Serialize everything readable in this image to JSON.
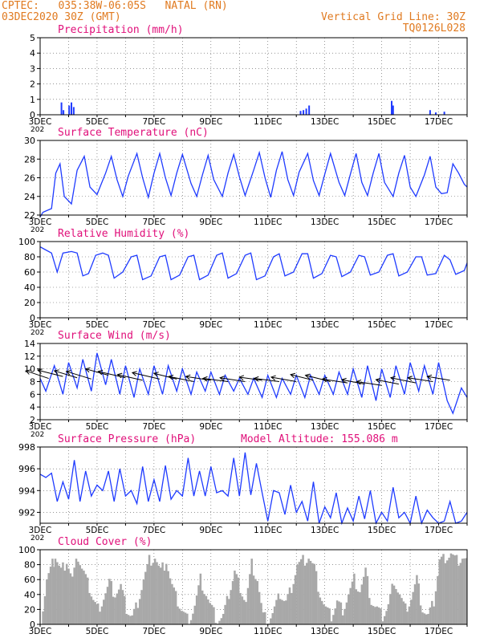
{
  "header": {
    "station_line": "CPTEC:   035:38W-06:05S   NATAL (RN)",
    "run_line": "03DEC2020 30Z (GMT)",
    "grid_note": "Vertical Grid Line: 30Z",
    "model_code": "TQ0126L028"
  },
  "colors": {
    "header": "#e07a20",
    "title": "#e0107a",
    "line": "#1f3bff",
    "cloud": "#a8a8a8",
    "wind_arrow": "#000000"
  },
  "x_axis": {
    "start_day": 3,
    "end_day": 18,
    "tick_labels": [
      "3DEC",
      "5DEC",
      "7DEC",
      "9DEC",
      "11DEC",
      "13DEC",
      "15DEC",
      "17DEC"
    ],
    "tick_days": [
      3,
      5,
      7,
      9,
      11,
      13,
      15,
      17
    ],
    "left_edge_cut_label": "202"
  },
  "chart_data": [
    {
      "type": "bar",
      "title": "Precipitation (mm/h)",
      "ylim": [
        0,
        5
      ],
      "yticks": [
        "0",
        "1",
        "2",
        "3",
        "4",
        "5"
      ],
      "x_days": [
        3.75,
        3.82,
        4.02,
        4.1,
        4.18,
        12.15,
        12.25,
        12.35,
        12.45,
        15.35,
        15.4,
        16.7,
        16.9,
        17.2
      ],
      "values": [
        0.8,
        0.3,
        0.6,
        0.8,
        0.5,
        0.25,
        0.3,
        0.4,
        0.6,
        0.9,
        0.6,
        0.3,
        0.15,
        0.2
      ]
    },
    {
      "type": "line",
      "title": "Surface Temperature (nC)",
      "ylim": [
        22,
        30
      ],
      "yticks": [
        "22",
        "24",
        "26",
        "28",
        "30"
      ],
      "x": [
        3.0,
        3.1,
        3.4,
        3.55,
        3.7,
        3.85,
        4.1,
        4.3,
        4.55,
        4.75,
        5.0,
        5.3,
        5.5,
        5.7,
        5.9,
        6.1,
        6.4,
        6.6,
        6.8,
        7.0,
        7.2,
        7.4,
        7.6,
        7.8,
        8.0,
        8.3,
        8.5,
        8.7,
        8.9,
        9.1,
        9.4,
        9.6,
        9.8,
        10.0,
        10.2,
        10.5,
        10.7,
        10.9,
        11.1,
        11.3,
        11.5,
        11.7,
        11.9,
        12.1,
        12.4,
        12.6,
        12.8,
        13.0,
        13.2,
        13.5,
        13.7,
        13.9,
        14.1,
        14.3,
        14.5,
        14.7,
        14.9,
        15.1,
        15.4,
        15.6,
        15.8,
        16.0,
        16.2,
        16.5,
        16.7,
        16.9,
        17.1,
        17.3,
        17.5,
        17.7,
        17.9,
        18.0
      ],
      "values": [
        21.8,
        22.3,
        22.7,
        26.5,
        27.5,
        24.0,
        23.2,
        26.8,
        28.3,
        25.0,
        24.2,
        26.5,
        28.3,
        25.8,
        24.0,
        26.2,
        28.6,
        26.0,
        23.9,
        26.5,
        28.6,
        26.0,
        24.1,
        26.5,
        28.5,
        25.4,
        24.0,
        26.3,
        28.4,
        25.8,
        24.0,
        26.5,
        28.5,
        26.1,
        24.1,
        26.8,
        28.7,
        26.0,
        23.9,
        26.8,
        28.8,
        25.8,
        24.1,
        26.6,
        28.6,
        25.7,
        24.1,
        26.4,
        28.6,
        25.5,
        24.1,
        26.4,
        28.6,
        25.5,
        24.1,
        26.5,
        28.6,
        25.5,
        24.0,
        26.5,
        28.4,
        25.0,
        24.0,
        26.3,
        28.3,
        25.0,
        24.3,
        24.4,
        27.5,
        26.5,
        25.3,
        25.0
      ]
    },
    {
      "type": "line",
      "title": "Relative Humidity (%)",
      "ylim": [
        0,
        100
      ],
      "yticks": [
        "0",
        "20",
        "40",
        "60",
        "80",
        "100"
      ],
      "x": [
        3.0,
        3.15,
        3.4,
        3.6,
        3.8,
        4.1,
        4.3,
        4.5,
        4.7,
        4.95,
        5.2,
        5.4,
        5.6,
        5.9,
        6.2,
        6.4,
        6.6,
        6.9,
        7.2,
        7.4,
        7.6,
        7.9,
        8.2,
        8.4,
        8.6,
        8.9,
        9.2,
        9.4,
        9.6,
        9.9,
        10.2,
        10.4,
        10.6,
        10.9,
        11.2,
        11.4,
        11.6,
        11.9,
        12.2,
        12.4,
        12.6,
        12.9,
        13.2,
        13.4,
        13.6,
        13.9,
        14.2,
        14.4,
        14.6,
        14.9,
        15.2,
        15.4,
        15.6,
        15.9,
        16.2,
        16.4,
        16.6,
        16.9,
        17.2,
        17.4,
        17.6,
        17.9,
        18.0
      ],
      "values": [
        93,
        90,
        85,
        60,
        85,
        87,
        85,
        55,
        58,
        82,
        85,
        82,
        52,
        60,
        80,
        82,
        50,
        55,
        80,
        82,
        50,
        56,
        80,
        82,
        50,
        56,
        82,
        85,
        52,
        58,
        82,
        85,
        50,
        55,
        80,
        84,
        55,
        60,
        84,
        84,
        52,
        58,
        82,
        80,
        54,
        60,
        82,
        80,
        56,
        60,
        82,
        84,
        55,
        60,
        80,
        80,
        56,
        58,
        82,
        76,
        57,
        62,
        72
      ]
    },
    {
      "type": "line",
      "title": "Surface Wind (m/s)",
      "ylim": [
        2,
        14
      ],
      "yticks": [
        "2",
        "4",
        "6",
        "8",
        "10",
        "12",
        "14"
      ],
      "x": [
        3.0,
        3.2,
        3.5,
        3.8,
        4.0,
        4.3,
        4.5,
        4.8,
        5.0,
        5.3,
        5.5,
        5.8,
        6.0,
        6.3,
        6.5,
        6.8,
        7.0,
        7.3,
        7.5,
        7.8,
        8.0,
        8.3,
        8.5,
        8.8,
        9.0,
        9.3,
        9.5,
        9.8,
        10.0,
        10.3,
        10.5,
        10.8,
        11.0,
        11.3,
        11.5,
        11.8,
        12.0,
        12.3,
        12.5,
        12.8,
        13.0,
        13.3,
        13.5,
        13.8,
        14.0,
        14.3,
        14.5,
        14.8,
        15.0,
        15.3,
        15.5,
        15.8,
        16.0,
        16.3,
        16.5,
        16.8,
        17.0,
        17.3,
        17.5,
        17.8,
        18.0
      ],
      "values": [
        8.5,
        6.5,
        10.5,
        6.0,
        11.0,
        7.0,
        11.5,
        6.5,
        12.5,
        7.5,
        11.5,
        6.0,
        10.5,
        5.5,
        10.0,
        6.0,
        10.5,
        6.0,
        10.5,
        6.5,
        10.0,
        6.0,
        9.5,
        6.5,
        9.5,
        6.0,
        9.0,
        6.5,
        8.5,
        6.0,
        8.5,
        5.5,
        9.0,
        5.5,
        8.5,
        6.0,
        9.0,
        5.5,
        9.0,
        6.0,
        9.0,
        6.0,
        9.5,
        6.0,
        10.0,
        5.5,
        10.5,
        5.0,
        10.0,
        5.5,
        10.5,
        6.0,
        11.0,
        6.5,
        10.5,
        6.0,
        11.0,
        5.0,
        3.0,
        7.0,
        5.5
      ],
      "wind_arrows": [
        {
          "x": 3.3,
          "y": 8.5,
          "dx": -0.5,
          "dy": 1.2
        },
        {
          "x": 3.8,
          "y": 8.8,
          "dx": -0.55,
          "dy": 1.0
        },
        {
          "x": 4.3,
          "y": 8.6,
          "dx": -0.5,
          "dy": 1.1
        },
        {
          "x": 4.8,
          "y": 8.4,
          "dx": -0.55,
          "dy": 1.2
        },
        {
          "x": 5.4,
          "y": 9.0,
          "dx": -0.5,
          "dy": 1.0
        },
        {
          "x": 6.0,
          "y": 8.6,
          "dx": -0.6,
          "dy": 1.0
        },
        {
          "x": 6.6,
          "y": 8.2,
          "dx": -0.55,
          "dy": 0.9
        },
        {
          "x": 7.2,
          "y": 8.4,
          "dx": -0.6,
          "dy": 1.0
        },
        {
          "x": 7.8,
          "y": 8.4,
          "dx": -0.5,
          "dy": 0.9
        },
        {
          "x": 8.4,
          "y": 8.0,
          "dx": -0.55,
          "dy": 0.8
        },
        {
          "x": 9.0,
          "y": 8.2,
          "dx": -0.55,
          "dy": 0.6
        },
        {
          "x": 9.6,
          "y": 8.0,
          "dx": -0.55,
          "dy": 0.5
        },
        {
          "x": 10.2,
          "y": 8.0,
          "dx": -0.55,
          "dy": 0.6
        },
        {
          "x": 10.8,
          "y": 8.2,
          "dx": -0.5,
          "dy": 0.5
        },
        {
          "x": 11.4,
          "y": 8.0,
          "dx": -0.55,
          "dy": 0.5
        },
        {
          "x": 12.0,
          "y": 8.0,
          "dx": -0.55,
          "dy": 0.7
        },
        {
          "x": 12.6,
          "y": 8.2,
          "dx": -0.5,
          "dy": 0.9
        },
        {
          "x": 13.2,
          "y": 8.0,
          "dx": -0.55,
          "dy": 1.0
        },
        {
          "x": 13.8,
          "y": 7.8,
          "dx": -0.55,
          "dy": 0.6
        },
        {
          "x": 14.4,
          "y": 7.6,
          "dx": -0.5,
          "dy": 0.7
        },
        {
          "x": 15.0,
          "y": 7.4,
          "dx": -0.55,
          "dy": 0.6
        },
        {
          "x": 15.6,
          "y": 7.6,
          "dx": -0.5,
          "dy": 0.7
        },
        {
          "x": 16.2,
          "y": 7.8,
          "dx": -0.55,
          "dy": 0.8
        },
        {
          "x": 16.8,
          "y": 8.0,
          "dx": -0.55,
          "dy": 0.6
        },
        {
          "x": 17.4,
          "y": 8.2,
          "dx": -0.5,
          "dy": 0.6
        }
      ]
    },
    {
      "type": "line",
      "title": "Surface Pressure (hPa)",
      "subtitle": "Model Altitude: 155.086 m",
      "ylim": [
        991,
        998
      ],
      "yticks": [
        "992",
        "994",
        "996",
        "998"
      ],
      "x": [
        3.0,
        3.2,
        3.4,
        3.6,
        3.8,
        4.0,
        4.2,
        4.4,
        4.6,
        4.8,
        5.0,
        5.2,
        5.4,
        5.6,
        5.8,
        6.0,
        6.2,
        6.4,
        6.6,
        6.8,
        7.0,
        7.2,
        7.4,
        7.6,
        7.8,
        8.0,
        8.2,
        8.4,
        8.6,
        8.8,
        9.0,
        9.2,
        9.4,
        9.6,
        9.8,
        10.0,
        10.2,
        10.4,
        10.6,
        10.8,
        11.0,
        11.2,
        11.4,
        11.6,
        11.8,
        12.0,
        12.2,
        12.4,
        12.6,
        12.8,
        13.0,
        13.2,
        13.4,
        13.6,
        13.8,
        14.0,
        14.2,
        14.4,
        14.6,
        14.8,
        15.0,
        15.2,
        15.4,
        15.6,
        15.8,
        16.0,
        16.2,
        16.4,
        16.6,
        16.8,
        17.0,
        17.2,
        17.4,
        17.6,
        17.8,
        18.0
      ],
      "values": [
        995.5,
        995.2,
        995.6,
        993.0,
        994.8,
        993.2,
        996.8,
        993.0,
        995.8,
        993.5,
        994.5,
        994.0,
        995.8,
        993.0,
        996.0,
        993.5,
        994.0,
        992.8,
        996.2,
        993.0,
        995.0,
        993.0,
        996.3,
        993.2,
        994.0,
        993.5,
        997.0,
        993.5,
        995.8,
        993.5,
        996.2,
        993.8,
        994.0,
        993.5,
        997.0,
        993.5,
        997.5,
        993.6,
        996.5,
        993.8,
        991.2,
        994.0,
        993.8,
        991.8,
        994.5,
        992.0,
        993.0,
        991.2,
        994.8,
        991.0,
        992.5,
        991.5,
        993.8,
        991.0,
        992.4,
        991.2,
        993.5,
        991.4,
        994.0,
        991.0,
        992.0,
        991.2,
        994.3,
        991.5,
        992.0,
        991.0,
        993.5,
        991.0,
        992.2,
        991.5,
        991.0,
        991.2,
        993.0,
        991.0,
        991.2,
        992.0
      ]
    },
    {
      "type": "area",
      "title": "Cloud Cover (%)",
      "ylim": [
        0,
        100
      ],
      "yticks": [
        "0",
        "20",
        "40",
        "60",
        "80",
        "100"
      ],
      "x": [
        3.0,
        3.2,
        3.4,
        3.5,
        3.7,
        3.9,
        4.1,
        4.3,
        4.5,
        4.7,
        4.9,
        5.0,
        5.2,
        5.4,
        5.6,
        5.8,
        6.0,
        6.2,
        6.4,
        6.6,
        6.8,
        7.0,
        7.2,
        7.4,
        7.6,
        7.8,
        8.0,
        8.2,
        8.4,
        8.6,
        8.8,
        9.0,
        9.2,
        9.4,
        9.6,
        9.8,
        10.0,
        10.2,
        10.4,
        10.6,
        10.8,
        11.0,
        11.2,
        11.4,
        11.6,
        11.8,
        12.0,
        12.2,
        12.4,
        12.6,
        12.8,
        13.0,
        13.2,
        13.4,
        13.6,
        13.8,
        14.0,
        14.2,
        14.4,
        14.6,
        14.8,
        15.0,
        15.2,
        15.4,
        15.6,
        15.8,
        16.0,
        16.2,
        16.4,
        16.6,
        16.8,
        17.0,
        17.2,
        17.4,
        17.6,
        17.8,
        18.0
      ],
      "values": [
        5,
        60,
        80,
        90,
        70,
        85,
        60,
        90,
        70,
        50,
        30,
        20,
        35,
        55,
        40,
        50,
        20,
        10,
        30,
        60,
        85,
        90,
        70,
        85,
        50,
        30,
        15,
        5,
        25,
        60,
        40,
        20,
        5,
        10,
        40,
        70,
        50,
        30,
        80,
        60,
        10,
        5,
        20,
        40,
        30,
        50,
        80,
        85,
        90,
        75,
        40,
        20,
        10,
        30,
        20,
        40,
        60,
        45,
        70,
        30,
        20,
        10,
        25,
        60,
        40,
        20,
        35,
        60,
        20,
        10,
        30,
        85,
        90,
        95,
        85,
        90,
        85
      ]
    }
  ]
}
